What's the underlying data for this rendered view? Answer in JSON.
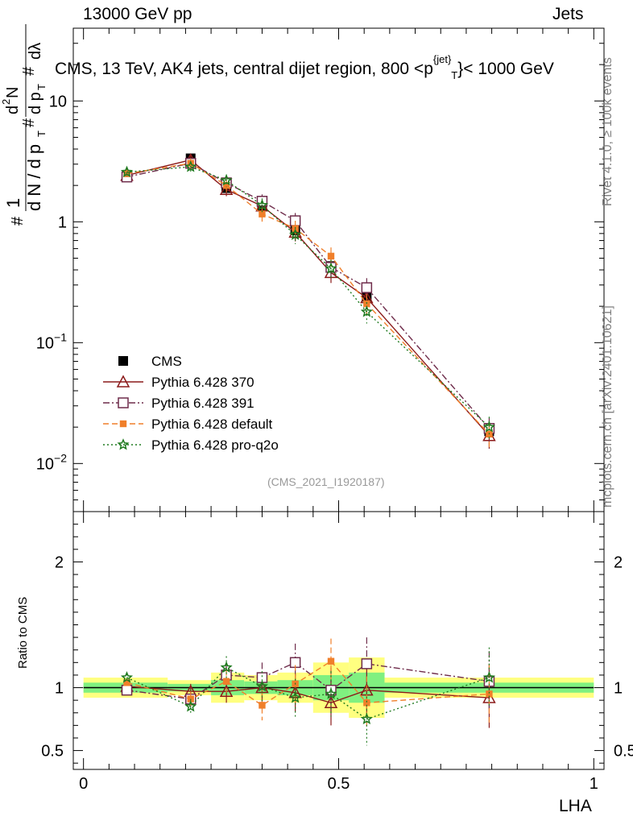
{
  "header": {
    "beam": "13000 GeV pp",
    "category": "Jets",
    "rivet": "Rivet 4.1.0, ≥ 100k events",
    "mcplots": "mcplots.cern.ch [arXiv:2401.10621]",
    "analysis_id": "(CMS_2021_I1920187)"
  },
  "chart_data": [
    {
      "type": "line",
      "panel": "main",
      "title": "CMS, 13 TeV, AK4 jets, central dijet region, 800 <p_T^{jet}> < 1000 GeV",
      "ylabel": "1/(dN/dpT) d²N/(dpT dλ)",
      "xlabel": "LHA",
      "yscale": "log",
      "xlim": [
        -0.02,
        1.02
      ],
      "ylim": [
        0.004,
        40
      ],
      "y_ticks": [
        {
          "value": 0.01,
          "base": "10",
          "exp": "−2"
        },
        {
          "value": 0.1,
          "base": "10",
          "exp": "−1"
        },
        {
          "value": 1,
          "base": "1",
          "exp": ""
        },
        {
          "value": 10,
          "base": "10",
          "exp": ""
        }
      ],
      "x_ticks": [
        {
          "value": 0,
          "label": "0"
        },
        {
          "value": 0.5,
          "label": "0.5"
        },
        {
          "value": 1,
          "label": "1"
        }
      ],
      "x": [
        0.085,
        0.21,
        0.28,
        0.35,
        0.415,
        0.485,
        0.555,
        0.795
      ],
      "bins": [
        [
          0.0,
          0.165
        ],
        [
          0.165,
          0.25
        ],
        [
          0.25,
          0.315
        ],
        [
          0.315,
          0.38
        ],
        [
          0.38,
          0.45
        ],
        [
          0.45,
          0.52
        ],
        [
          0.52,
          0.59
        ],
        [
          0.59,
          1.0
        ]
      ],
      "series": [
        {
          "name": "CMS",
          "marker": "square",
          "color": "#000000",
          "dash": "",
          "values": [
            2.4,
            3.35,
            1.9,
            1.35,
            0.85,
            0.43,
            0.24,
            0.0185
          ]
        },
        {
          "name": "Pythia 6.428 370",
          "marker": "triangle-open",
          "color": "#8b1a1a",
          "dash": "",
          "values": [
            2.42,
            3.25,
            1.85,
            1.35,
            0.82,
            0.38,
            0.235,
            0.017
          ]
        },
        {
          "name": "Pythia 6.428 391",
          "marker": "square-open",
          "color": "#6e2b4a",
          "dash": "8,3,2,3",
          "values": [
            2.35,
            3.05,
            2.1,
            1.48,
            1.02,
            0.42,
            0.285,
            0.0195
          ]
        },
        {
          "name": "Pythia 6.428 default",
          "marker": "square-small",
          "color": "#f07f2a",
          "dash": "7,4",
          "values": [
            2.5,
            3.05,
            2.0,
            1.16,
            0.88,
            0.52,
            0.21,
            0.0175
          ]
        },
        {
          "name": "Pythia 6.428 pro-q2o",
          "marker": "star",
          "color": "#1f7a1f",
          "dash": "2,3",
          "values": [
            2.58,
            2.85,
            2.2,
            1.37,
            0.78,
            0.41,
            0.18,
            0.02
          ]
        }
      ]
    },
    {
      "type": "line",
      "panel": "ratio",
      "ylabel": "Ratio to CMS",
      "xlabel": "LHA",
      "ylim": [
        0.35,
        2.4
      ],
      "y_ticks_left": [
        {
          "value": 0.5,
          "label": "0.5"
        },
        {
          "value": 1,
          "label": "1"
        },
        {
          "value": 2,
          "label": "2"
        }
      ],
      "y_ticks_right": [
        {
          "value": 0.5,
          "label": "0.5"
        },
        {
          "value": 1,
          "label": "1"
        },
        {
          "value": 2,
          "label": "2"
        }
      ],
      "band_inner": [
        0.04,
        0.03,
        0.06,
        0.05,
        0.06,
        0.1,
        0.12,
        0.04
      ],
      "band_outer": [
        0.08,
        0.06,
        0.12,
        0.1,
        0.12,
        0.2,
        0.24,
        0.08
      ],
      "series": [
        {
          "name": "Pythia 6.428 370",
          "values": [
            1.01,
            0.97,
            0.97,
            1.0,
            0.96,
            0.88,
            0.98,
            0.92
          ]
        },
        {
          "name": "Pythia 6.428 391",
          "values": [
            0.98,
            0.91,
            1.1,
            1.08,
            1.2,
            0.98,
            1.19,
            1.05
          ]
        },
        {
          "name": "Pythia 6.428 default",
          "values": [
            1.04,
            0.91,
            1.05,
            0.86,
            1.03,
            1.21,
            0.88,
            0.95
          ]
        },
        {
          "name": "Pythia 6.428 pro-q2o",
          "values": [
            1.08,
            0.85,
            1.16,
            1.01,
            0.92,
            0.95,
            0.75,
            1.08
          ]
        }
      ]
    }
  ]
}
